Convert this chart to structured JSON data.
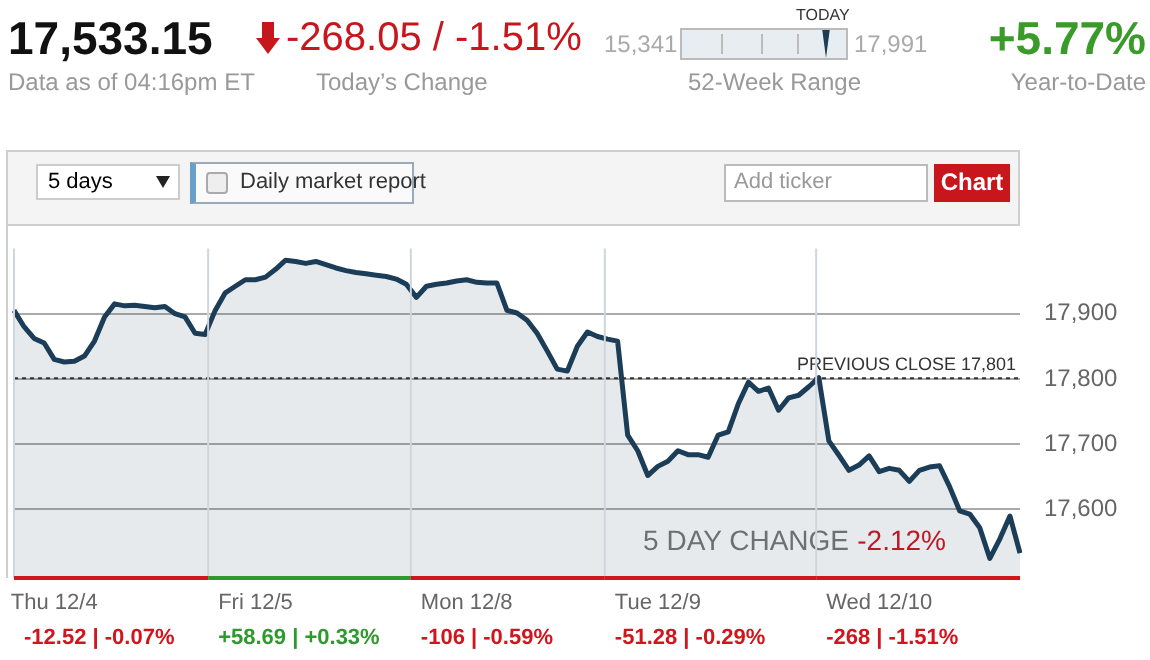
{
  "chart_data": {
    "type": "area",
    "title": "17,533.15",
    "subtitle": "Data as of 04:16pm ET",
    "annotations": [
      "-268.05 / -1.51%",
      "Today’s Change",
      "15,341",
      "17,991",
      "TODAY",
      "52-Week Range",
      "+5.77%",
      "Year-to-Date",
      "5 days",
      "Daily market report",
      "Add ticker",
      "Chart",
      "5 DAY CHANGE",
      "-2.12%",
      "-12.52 | -0.07%",
      "+58.69 | +0.33%",
      "-106 | -0.59%",
      "-51.28 | -0.29%",
      "-268 | -1.51%"
    ],
    "categories": [
      null,
      null,
      null,
      null,
      "Thu 12/4",
      null,
      null,
      null,
      null,
      null,
      null,
      null,
      null,
      null,
      null,
      null,
      null,
      null,
      null,
      null,
      null,
      null,
      null,
      null,
      "Fri 12/5",
      null,
      null,
      null,
      null,
      null,
      null,
      null,
      null,
      null,
      null,
      null,
      null,
      null,
      null,
      null,
      null,
      null,
      null,
      null,
      null,
      "Mon 12/8",
      null,
      null,
      null,
      null,
      null,
      null,
      null,
      null,
      null,
      null,
      null,
      null,
      null,
      null,
      null,
      null,
      null,
      null,
      "Tue 12/9",
      null,
      null,
      null,
      null,
      null,
      null,
      null,
      null,
      null,
      null,
      null,
      null,
      null,
      null,
      null,
      null,
      null,
      null,
      null,
      null,
      null,
      "Wed 12/10",
      null,
      null,
      null,
      null,
      null,
      null,
      null,
      null,
      null,
      null,
      null,
      null,
      null,
      null
    ],
    "series": [
      {
        "color": "#1c3d57",
        "values": [
          17905,
          17880,
          17862,
          17855,
          17830,
          17826,
          17827,
          17835,
          17858,
          17895,
          17915,
          17912,
          17913,
          17911,
          17909,
          17911,
          17900,
          17895,
          17870,
          17868,
          17905,
          17932,
          17942,
          17952,
          17952,
          17956,
          17968,
          17982,
          17980,
          17977,
          17980,
          17975,
          17970,
          17966,
          17963,
          17961,
          17959,
          17957,
          17953,
          17945,
          17925,
          17942,
          17945,
          17947,
          17950,
          17952,
          17948,
          17947,
          17947,
          17905,
          17901,
          17890,
          17870,
          17843,
          17815,
          17812,
          17850,
          17872,
          17865,
          17861,
          17858,
          17714,
          17690,
          17652,
          17666,
          17674,
          17690,
          17684,
          17684,
          17680,
          17714,
          17719,
          17762,
          17795,
          17781,
          17786,
          17752,
          17771,
          17775,
          17788,
          17802,
          17705,
          17683,
          17660,
          17668,
          17682,
          17658,
          17663,
          17660,
          17643,
          17660,
          17665,
          17667,
          17635,
          17598,
          17593,
          17572,
          17525,
          17555,
          17590,
          17533
        ]
      }
    ],
    "ylim": [
      17495,
      18000
    ],
    "yticks": [
      {
        "value": 17600,
        "label": "17,600"
      },
      {
        "value": 17700,
        "label": "17,700"
      },
      {
        "value": 17800,
        "label": "17,800"
      },
      {
        "value": 17900,
        "label": "17,900"
      }
    ],
    "ref_lines": [
      {
        "axis": "y",
        "value": 17801,
        "label": "PREVIOUS CLOSE 17,801",
        "color": "#333333",
        "line_style": "dotted"
      }
    ],
    "grid": true,
    "legend": false,
    "marker": "none",
    "line_style": "solid"
  }
}
